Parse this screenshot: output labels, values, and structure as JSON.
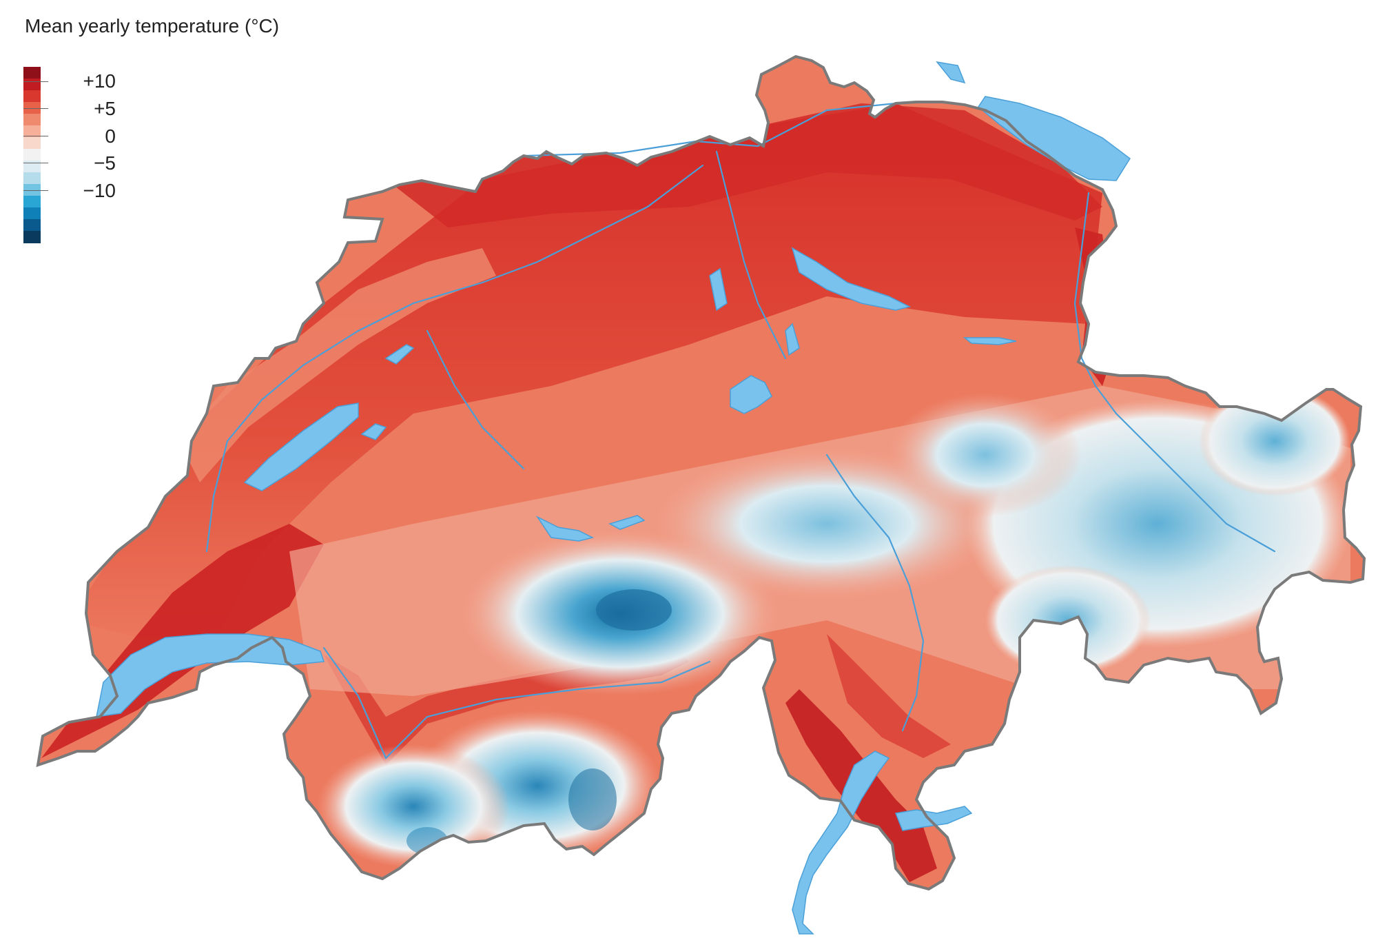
{
  "legend": {
    "title": "Mean yearly temperature (°C)",
    "ticks": [
      {
        "label": "+10",
        "value": 10
      },
      {
        "label": "+5",
        "value": 5
      },
      {
        "label": "0",
        "value": 0
      },
      {
        "label": "−5",
        "value": -5
      },
      {
        "label": "−10",
        "value": -10
      }
    ],
    "range": [
      -13,
      12
    ],
    "colors": [
      "#0a3a5e",
      "#0b5a8e",
      "#0f80b8",
      "#2aa6d4",
      "#72c4e2",
      "#b4dcea",
      "#dcecf2",
      "#f2f2f2",
      "#f9d8cc",
      "#f6b09a",
      "#ef8a6e",
      "#e8624a",
      "#d9382e",
      "#c01c22",
      "#90101a"
    ]
  },
  "map": {
    "region": "Switzerland",
    "colors": {
      "border": "#7a7a7a",
      "water": "#79c2ee",
      "river": "#4a9fd8",
      "lowland_hot": "#d8322c",
      "plateau": "#e8604a",
      "jura": "#ec7a5f",
      "mid_alpine": "#f2a792",
      "high_alpine_white": "#eef1f2",
      "glacier_blue": "#6ab6d8",
      "deep_cold": "#1d6f9f"
    }
  }
}
